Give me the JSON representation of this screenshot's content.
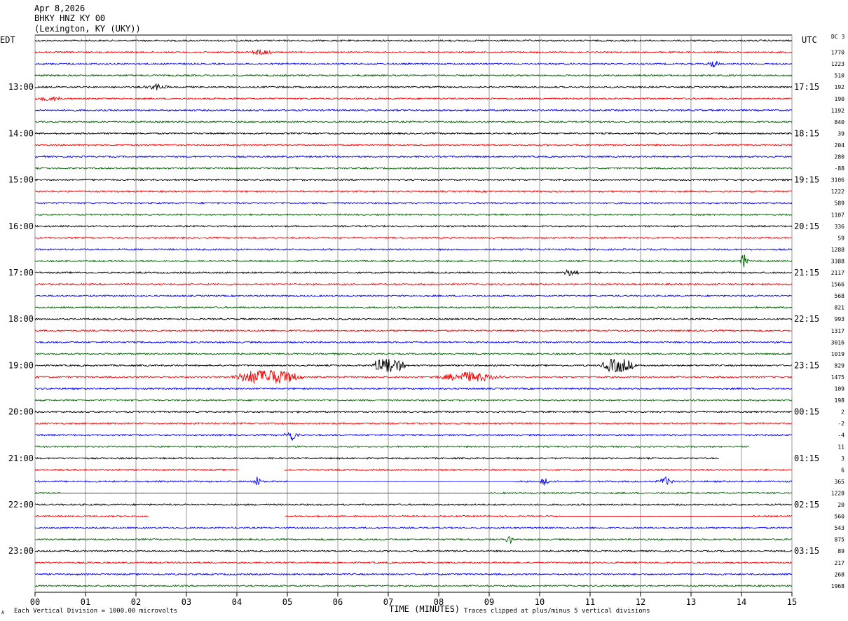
{
  "header": {
    "date": "Apr 8,2026",
    "station": "BHKY HNZ KY 00",
    "location": "(Lexington, KY (UKY))"
  },
  "left_timezone": "EDT",
  "right_timezone": "UTC",
  "dc_label": "DC",
  "dc_top_value": "3",
  "footer": {
    "scale_note": "Each Vertical Division = 1000.00 microvolts",
    "clip_note": "Traces clipped at plus/minus 5 vertical divisions",
    "corner_mark": "A"
  },
  "colors": {
    "trace_cycle": [
      "#000000",
      "#ff0000",
      "#0000ff",
      "#006400"
    ],
    "grid": "#808080",
    "background": "#ffffff"
  },
  "chart_data": {
    "type": "line",
    "title": "",
    "xlabel": "TIME (MINUTES)",
    "ylabel": "",
    "xlim": [
      0,
      15
    ],
    "x_ticks": [
      "00",
      "01",
      "02",
      "03",
      "04",
      "05",
      "06",
      "07",
      "08",
      "09",
      "10",
      "11",
      "12",
      "13",
      "14",
      "15"
    ],
    "grid": true,
    "trace_minutes": 15,
    "row_count": 48,
    "left_hour_labels": [
      "13:00",
      "14:00",
      "15:00",
      "16:00",
      "17:00",
      "18:00",
      "19:00",
      "20:00",
      "21:00",
      "22:00",
      "23:00"
    ],
    "right_hour_labels": [
      "17:15",
      "18:15",
      "19:15",
      "20:15",
      "21:15",
      "22:15",
      "23:15",
      "00:15",
      "01:15",
      "02:15",
      "03:15"
    ],
    "dc_offsets": [
      "1770",
      "1223",
      "510",
      "192",
      "190",
      "1192",
      "840",
      "39",
      "204",
      "280",
      "-88",
      "3106",
      "1222",
      "589",
      "1107",
      "336",
      "59",
      "1288",
      "3388",
      "2117",
      "1566",
      "568",
      "821",
      "993",
      "1317",
      "3016",
      "1019",
      "829",
      "1475",
      "109",
      "198",
      "2",
      "-2",
      "-4",
      "11",
      "3",
      "6",
      "365",
      "1228",
      "20",
      "560",
      "543",
      "875",
      "89",
      "217",
      "268",
      "1968"
    ],
    "events": [
      {
        "row": 1,
        "minute": 4.5,
        "amplitude": 1.2,
        "duration": 0.3
      },
      {
        "row": 2,
        "minute": 13.45,
        "amplitude": 1.4,
        "duration": 0.15
      },
      {
        "row": 4,
        "minute": 2.4,
        "amplitude": 1.2,
        "duration": 0.3
      },
      {
        "row": 5,
        "minute": 0.3,
        "amplitude": 1.0,
        "duration": 0.3
      },
      {
        "row": 19,
        "minute": 14.05,
        "amplitude": 3.0,
        "duration": 0.1
      },
      {
        "row": 20,
        "minute": 10.6,
        "amplitude": 1.2,
        "duration": 0.25
      },
      {
        "row": 28,
        "minute": 7.0,
        "amplitude": 4.0,
        "duration": 0.4
      },
      {
        "row": 28,
        "minute": 11.55,
        "amplitude": 3.5,
        "duration": 0.4
      },
      {
        "row": 29,
        "minute": 4.6,
        "amplitude": 4.0,
        "duration": 0.8
      },
      {
        "row": 29,
        "minute": 8.6,
        "amplitude": 2.0,
        "duration": 0.8
      },
      {
        "row": 34,
        "minute": 5.1,
        "amplitude": 2.0,
        "duration": 0.2
      },
      {
        "row": 38,
        "minute": 4.4,
        "amplitude": 2.5,
        "duration": 0.1
      },
      {
        "row": 38,
        "minute": 10.1,
        "amplitude": 2.0,
        "duration": 0.1
      },
      {
        "row": 38,
        "minute": 12.5,
        "amplitude": 1.5,
        "duration": 0.2
      },
      {
        "row": 43,
        "minute": 9.4,
        "amplitude": 1.5,
        "duration": 0.1
      }
    ],
    "gaps": [
      {
        "row": 36,
        "from": 13.55,
        "to": 15
      },
      {
        "row": 35,
        "from": 14.15,
        "to": 15
      },
      {
        "row": 37,
        "from": 4.05,
        "to": 4.95
      },
      {
        "row": 41,
        "from": 2.25,
        "to": 4.95
      }
    ],
    "flat_segments": [
      {
        "row": 38,
        "from": 5.0,
        "to": 9.5
      },
      {
        "row": 39,
        "from": 0.5,
        "to": 9.0
      },
      {
        "row": 41,
        "from": 10.4,
        "to": 14.2
      }
    ]
  }
}
